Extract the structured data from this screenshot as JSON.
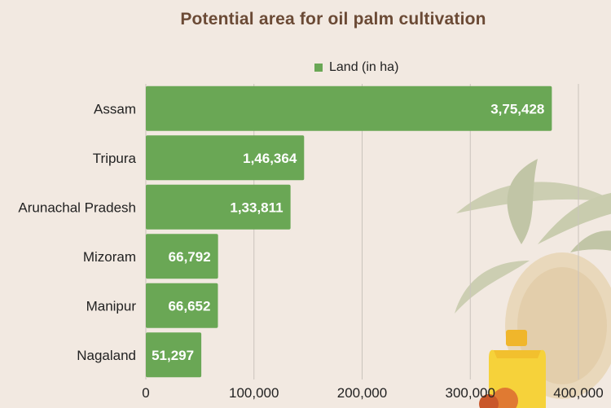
{
  "chart_data": {
    "type": "bar",
    "orientation": "horizontal",
    "title": "Potential area for oil palm cultivation",
    "categories": [
      "Assam",
      "Tripura",
      "Arunachal Pradesh",
      "Mizoram",
      "Manipur",
      "Nagaland"
    ],
    "series": [
      {
        "name": "Land (in ha)",
        "values": [
          375428,
          146364,
          133811,
          66792,
          66652,
          51297
        ],
        "labels": [
          "3,75,428",
          "1,46,364",
          "1,33,811",
          "66,792",
          "66,652",
          "51,297"
        ]
      }
    ],
    "xlim": [
      0,
      400000
    ],
    "xticks": [
      0,
      100000,
      200000,
      300000,
      400000
    ],
    "xtick_labels": [
      "0",
      "100,000",
      "200,000",
      "300,000",
      "400,000"
    ],
    "grid": true,
    "legend_position": "top",
    "bar_color": "#6aa755"
  }
}
